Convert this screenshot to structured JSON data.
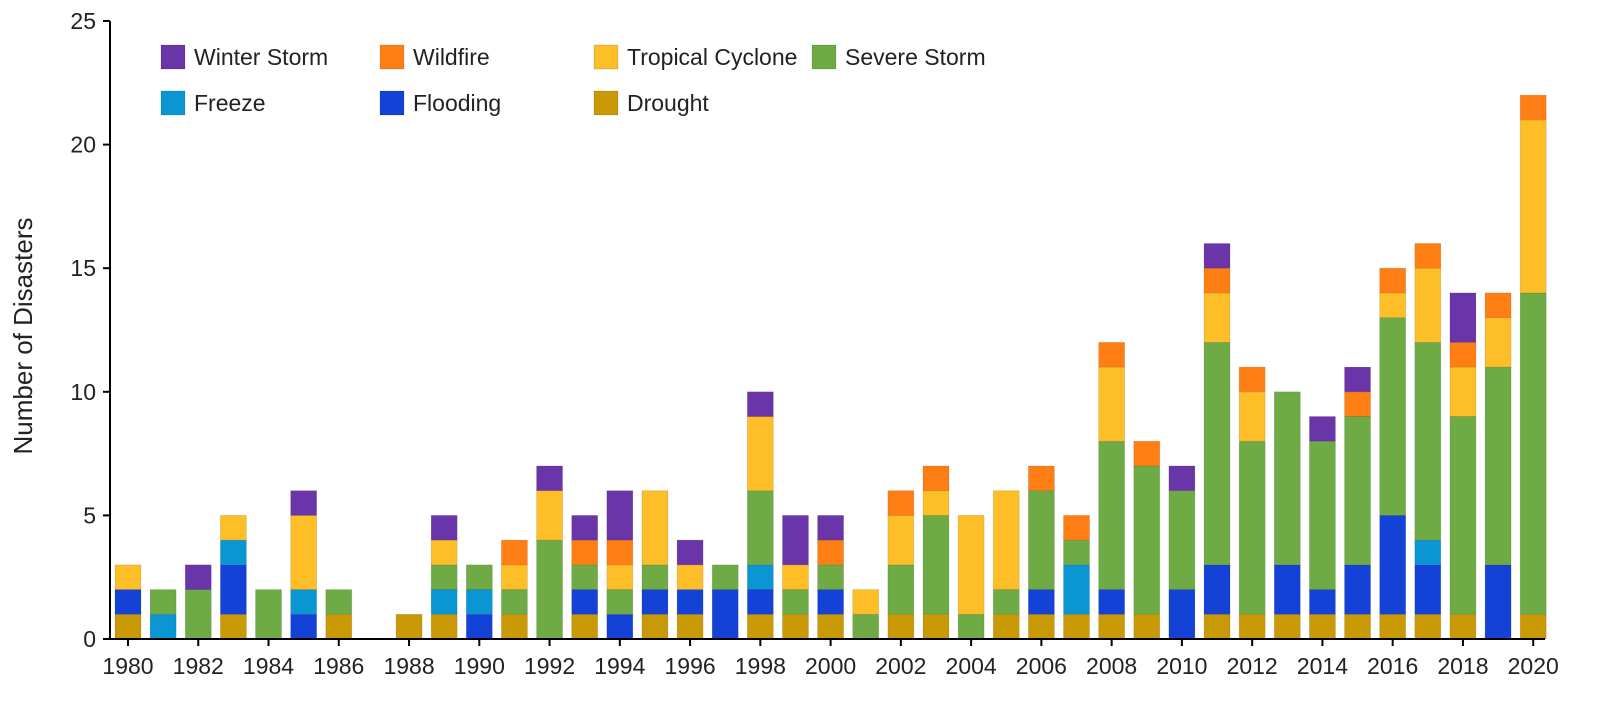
{
  "chart_data": {
    "type": "bar",
    "stacked": true,
    "title": "",
    "xlabel": "",
    "ylabel": "Number of Disasters",
    "ylim": [
      0,
      25
    ],
    "yticks": [
      0,
      5,
      10,
      15,
      20,
      25
    ],
    "xtick_labels": [
      "1980",
      "1982",
      "1984",
      "1986",
      "1988",
      "1990",
      "1992",
      "1994",
      "1996",
      "1998",
      "2000",
      "2002",
      "2004",
      "2006",
      "2008",
      "2010",
      "2012",
      "2014",
      "2016",
      "2018",
      "2020"
    ],
    "grid": false,
    "legend_position": "top-left",
    "categories": [
      "1980",
      "1981",
      "1982",
      "1983",
      "1984",
      "1985",
      "1986",
      "1987",
      "1988",
      "1989",
      "1990",
      "1991",
      "1992",
      "1993",
      "1994",
      "1995",
      "1996",
      "1997",
      "1998",
      "1999",
      "2000",
      "2001",
      "2002",
      "2003",
      "2004",
      "2005",
      "2006",
      "2007",
      "2008",
      "2009",
      "2010",
      "2011",
      "2012",
      "2013",
      "2014",
      "2015",
      "2016",
      "2017",
      "2018",
      "2019",
      "2020"
    ],
    "series": [
      {
        "name": "Drought",
        "color": "#C99A06",
        "values": [
          1,
          0,
          0,
          1,
          0,
          0,
          1,
          0,
          1,
          1,
          0,
          1,
          0,
          1,
          0,
          1,
          1,
          0,
          1,
          1,
          1,
          0,
          1,
          1,
          0,
          1,
          1,
          1,
          1,
          1,
          0,
          1,
          1,
          1,
          1,
          1,
          1,
          1,
          1,
          0,
          1
        ]
      },
      {
        "name": "Flooding",
        "color": "#1442D6",
        "values": [
          1,
          0,
          0,
          2,
          0,
          1,
          0,
          0,
          0,
          0,
          1,
          0,
          0,
          1,
          1,
          1,
          1,
          2,
          1,
          0,
          1,
          0,
          0,
          0,
          0,
          0,
          1,
          0,
          1,
          0,
          2,
          2,
          0,
          2,
          1,
          2,
          4,
          2,
          0,
          3,
          0
        ]
      },
      {
        "name": "Freeze",
        "color": "#0A96D2",
        "values": [
          0,
          1,
          0,
          1,
          0,
          1,
          0,
          0,
          0,
          1,
          1,
          0,
          0,
          0,
          0,
          0,
          0,
          0,
          1,
          0,
          0,
          0,
          0,
          0,
          0,
          0,
          0,
          2,
          0,
          0,
          0,
          0,
          0,
          0,
          0,
          0,
          0,
          1,
          0,
          0,
          0
        ]
      },
      {
        "name": "Severe Storm",
        "color": "#6FAB45",
        "values": [
          0,
          1,
          2,
          0,
          2,
          0,
          1,
          0,
          0,
          1,
          1,
          1,
          4,
          1,
          1,
          1,
          0,
          1,
          3,
          1,
          1,
          1,
          2,
          4,
          1,
          1,
          4,
          1,
          6,
          6,
          4,
          9,
          7,
          7,
          6,
          6,
          8,
          8,
          8,
          8,
          13
        ]
      },
      {
        "name": "Tropical Cyclone",
        "color": "#FDBE27",
        "values": [
          1,
          0,
          0,
          1,
          0,
          3,
          0,
          0,
          0,
          1,
          0,
          1,
          2,
          0,
          1,
          3,
          1,
          0,
          3,
          1,
          0,
          1,
          2,
          1,
          4,
          4,
          0,
          0,
          3,
          0,
          0,
          2,
          2,
          0,
          0,
          0,
          1,
          3,
          2,
          2,
          7
        ]
      },
      {
        "name": "Wildfire",
        "color": "#FF7F14",
        "values": [
          0,
          0,
          0,
          0,
          0,
          0,
          0,
          0,
          0,
          0,
          0,
          1,
          0,
          1,
          1,
          0,
          0,
          0,
          0,
          0,
          1,
          0,
          1,
          1,
          0,
          0,
          1,
          1,
          1,
          1,
          0,
          1,
          1,
          0,
          0,
          1,
          1,
          1,
          1,
          1,
          1
        ]
      },
      {
        "name": "Winter Storm",
        "color": "#6A35A8",
        "values": [
          0,
          0,
          1,
          0,
          0,
          1,
          0,
          0,
          0,
          1,
          0,
          0,
          1,
          1,
          2,
          0,
          1,
          0,
          1,
          2,
          1,
          0,
          0,
          0,
          0,
          0,
          0,
          0,
          0,
          0,
          1,
          1,
          0,
          0,
          1,
          1,
          0,
          0,
          2,
          0,
          0
        ]
      }
    ],
    "legend": {
      "rows": [
        [
          "Winter Storm",
          "Wildfire",
          "Tropical Cyclone",
          "Severe Storm"
        ],
        [
          "Freeze",
          "Flooding",
          "Drought"
        ]
      ]
    }
  }
}
